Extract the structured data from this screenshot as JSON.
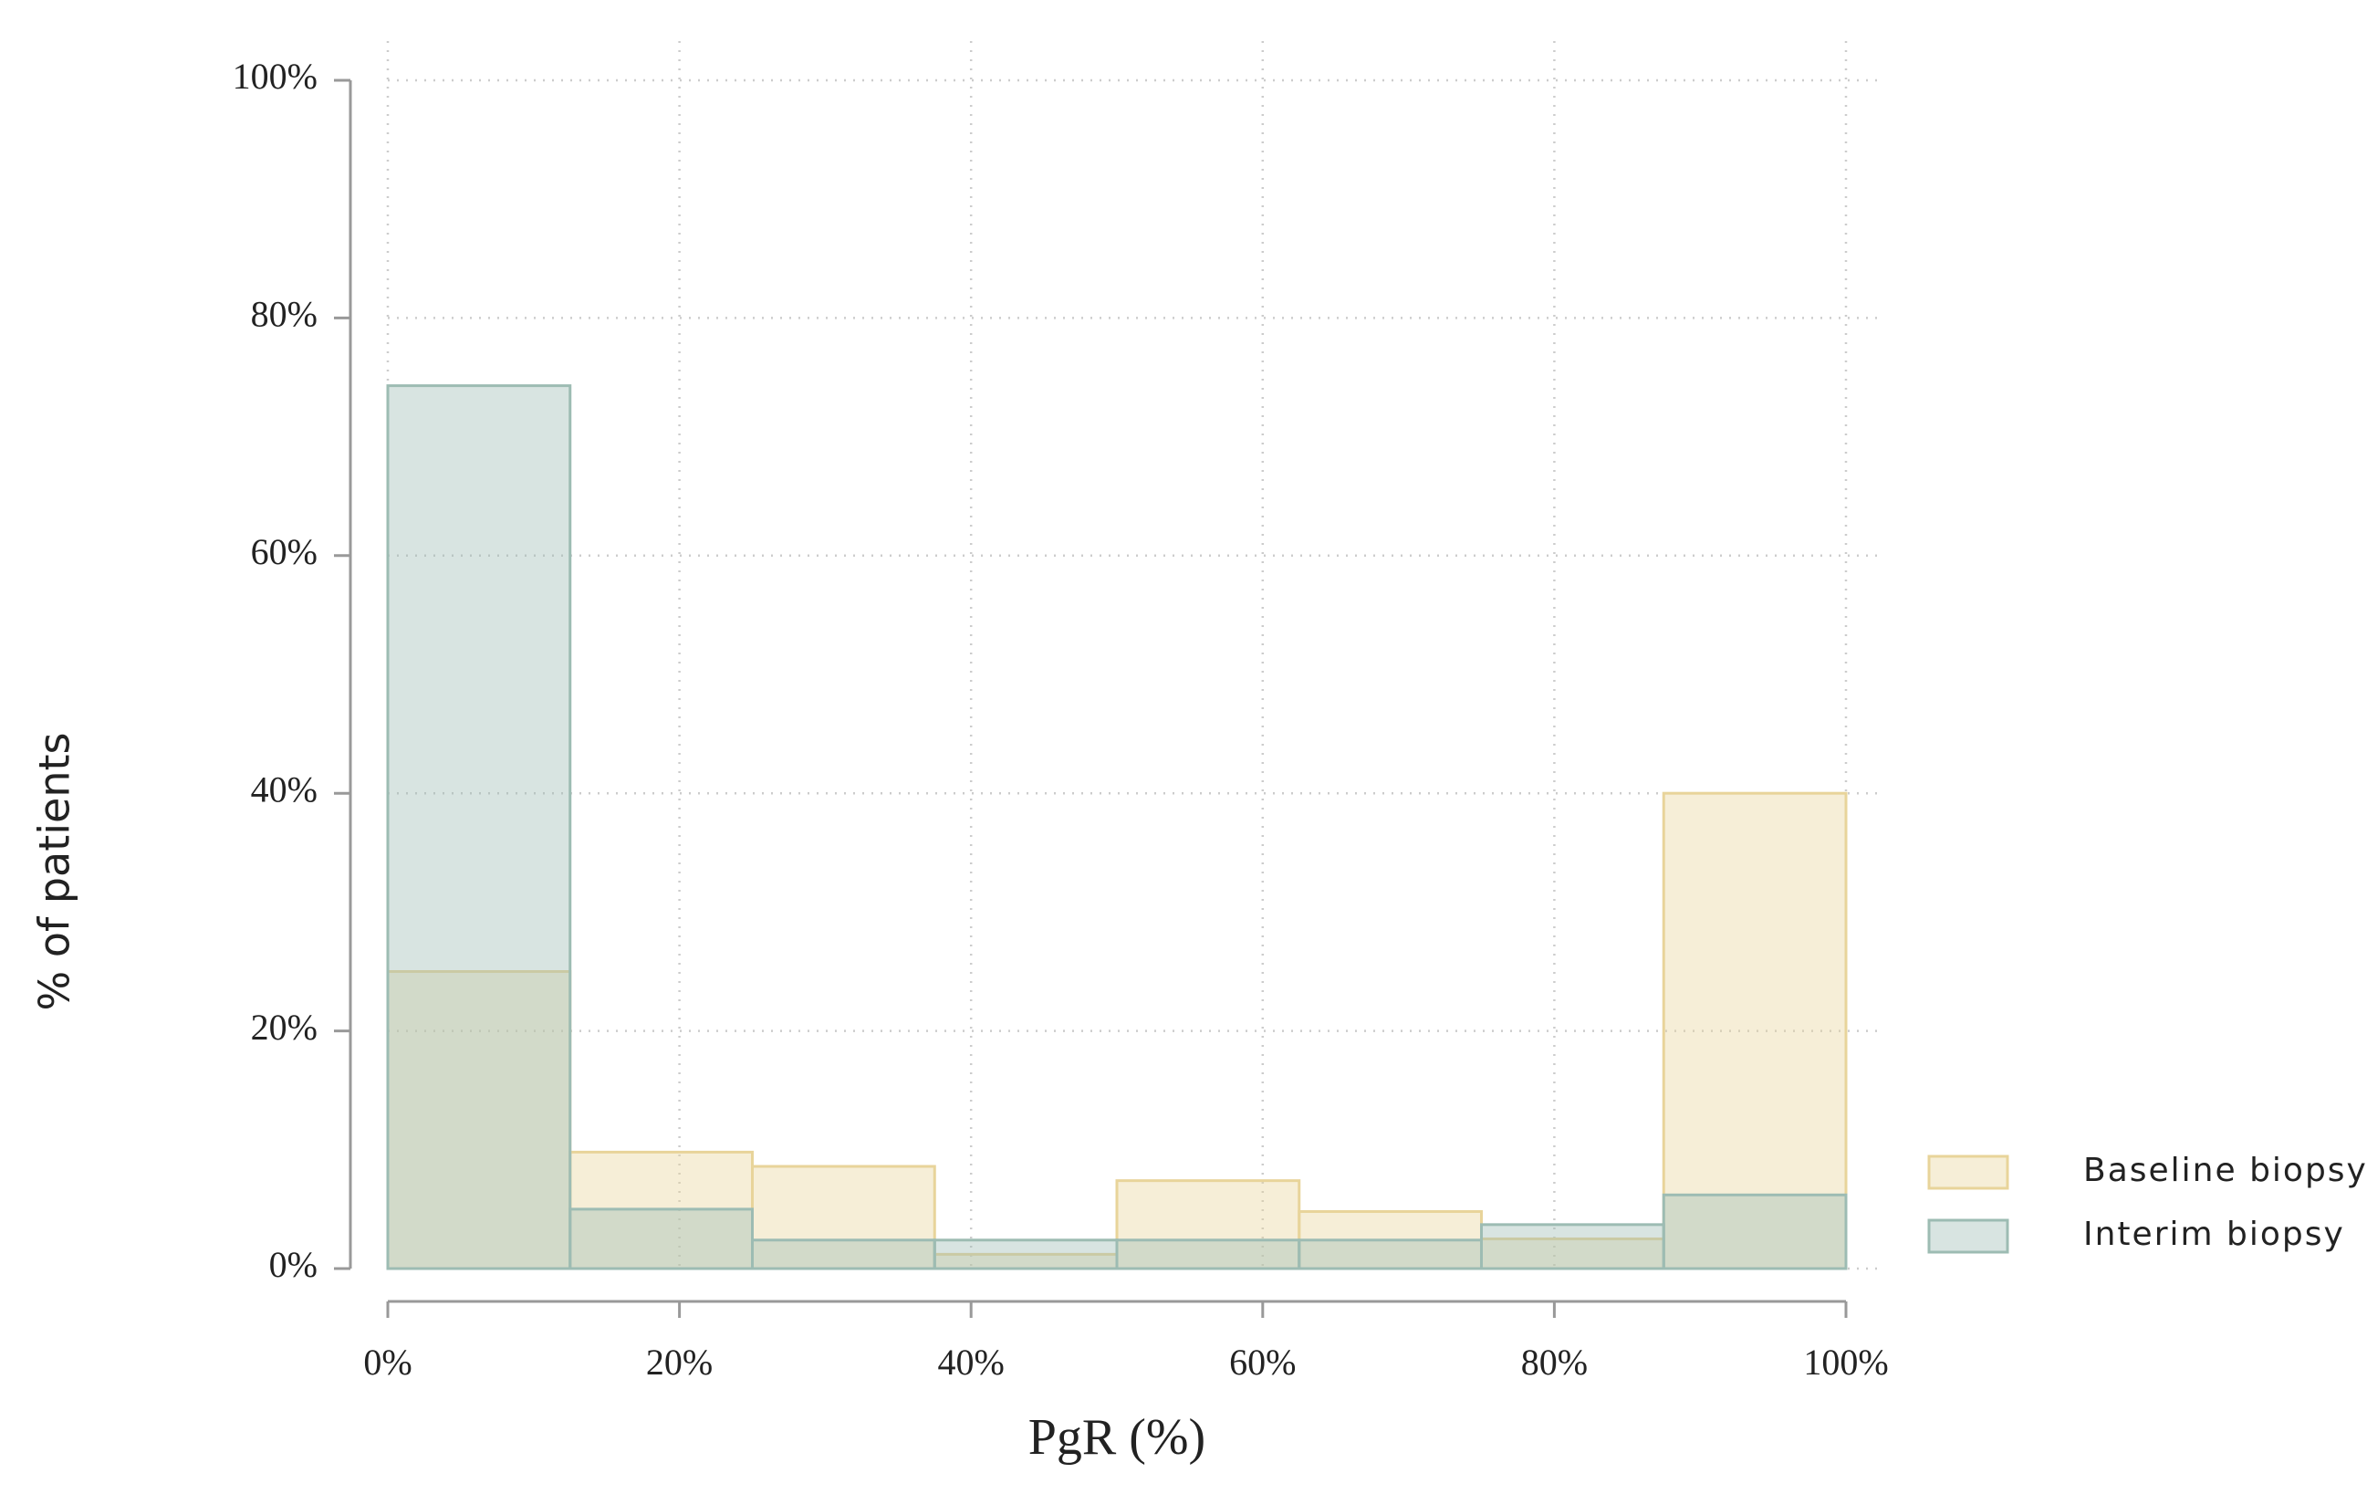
{
  "chart_data": {
    "type": "histogram",
    "xlabel": "PgR (%)",
    "ylabel": "% of patients",
    "bins": [
      0,
      12.5,
      25,
      37.5,
      50,
      62.5,
      75,
      87.5,
      100
    ],
    "series": [
      {
        "name": "Baseline biopsy",
        "color": "#e8d49a",
        "values": [
          25,
          9.8,
          8.6,
          1.2,
          7.4,
          4.8,
          2.5,
          40
        ]
      },
      {
        "name": "Interim biopsy",
        "color": "#9dbcb3",
        "values": [
          74.3,
          5,
          2.4,
          2.4,
          2.4,
          2.4,
          3.7,
          6.2
        ]
      }
    ],
    "xlim": [
      0,
      100
    ],
    "xticks": [
      {
        "value": 0,
        "label": "0%"
      },
      {
        "value": 20,
        "label": "20%"
      },
      {
        "value": 40,
        "label": "40%"
      },
      {
        "value": 60,
        "label": "60%"
      },
      {
        "value": 80,
        "label": "80%"
      },
      {
        "value": 100,
        "label": "100%"
      }
    ],
    "ylim": [
      0,
      100
    ],
    "yticks": [
      {
        "value": 0,
        "label": "0%"
      },
      {
        "value": 20,
        "label": "20%"
      },
      {
        "value": 40,
        "label": "40%"
      },
      {
        "value": 60,
        "label": "60%"
      },
      {
        "value": 80,
        "label": "80%"
      },
      {
        "value": 100,
        "label": "100%"
      }
    ],
    "grid": true,
    "legend": "right"
  }
}
